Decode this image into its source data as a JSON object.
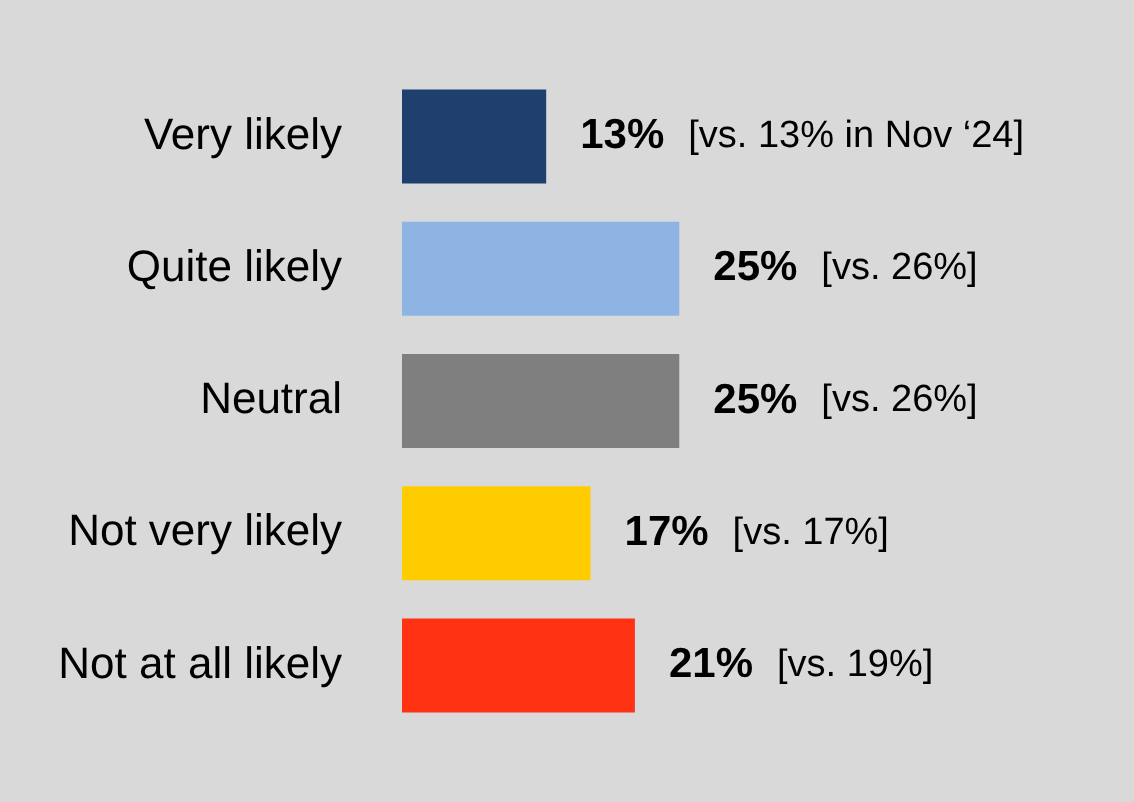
{
  "chart_data": {
    "type": "bar",
    "orientation": "horizontal",
    "categories": [
      "Very likely",
      "Quite likely",
      "Neutral",
      "Not very likely",
      "Not at all likely"
    ],
    "values": [
      13,
      25,
      25,
      17,
      21
    ],
    "colors": [
      "#1f3f6e",
      "#8db4e2",
      "#7f7f7f",
      "#ffcc00",
      "#ff3314"
    ],
    "value_labels": [
      "13%",
      "25%",
      "25%",
      "17%",
      "21%"
    ],
    "annotations": [
      "[vs. 13% in Nov ‘24]",
      "[vs. 26%]",
      "[vs. 26%]",
      "[vs. 17%]",
      "[vs. 19%]"
    ],
    "grid": false,
    "legend": false
  }
}
